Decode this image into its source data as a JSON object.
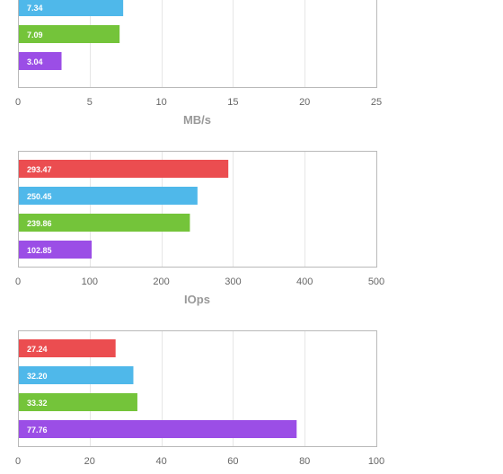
{
  "chart_data": [
    {
      "type": "bar",
      "orientation": "horizontal",
      "xlabel": "MB/s",
      "xlim": [
        0,
        25
      ],
      "x_ticks": [
        "0",
        "5",
        "10",
        "15",
        "20",
        "25"
      ],
      "grid": true,
      "bars": [
        {
          "value": 7.34,
          "label": "7.34",
          "color": "#4fb8ea"
        },
        {
          "value": 7.09,
          "label": "7.09",
          "color": "#74c43a"
        },
        {
          "value": 3.04,
          "label": "3.04",
          "color": "#9b4ee6"
        }
      ]
    },
    {
      "type": "bar",
      "orientation": "horizontal",
      "xlabel": "IOps",
      "xlim": [
        0,
        500
      ],
      "x_ticks": [
        "0",
        "100",
        "200",
        "300",
        "400",
        "500"
      ],
      "grid": true,
      "bars": [
        {
          "value": 293.47,
          "label": "293.47",
          "color": "#eb4d50"
        },
        {
          "value": 250.45,
          "label": "250.45",
          "color": "#4fb8ea"
        },
        {
          "value": 239.86,
          "label": "239.86",
          "color": "#74c43a"
        },
        {
          "value": 102.85,
          "label": "102.85",
          "color": "#9b4ee6"
        }
      ]
    },
    {
      "type": "bar",
      "orientation": "horizontal",
      "xlabel": "",
      "xlim": [
        0,
        100
      ],
      "x_ticks": [
        "0",
        "20",
        "40",
        "60",
        "80",
        "100"
      ],
      "grid": true,
      "bars": [
        {
          "value": 27.24,
          "label": "27.24",
          "color": "#eb4d50"
        },
        {
          "value": 32.2,
          "label": "32.20",
          "color": "#4fb8ea"
        },
        {
          "value": 33.32,
          "label": "33.32",
          "color": "#74c43a"
        },
        {
          "value": 77.76,
          "label": "77.76",
          "color": "#9b4ee6"
        }
      ]
    }
  ]
}
